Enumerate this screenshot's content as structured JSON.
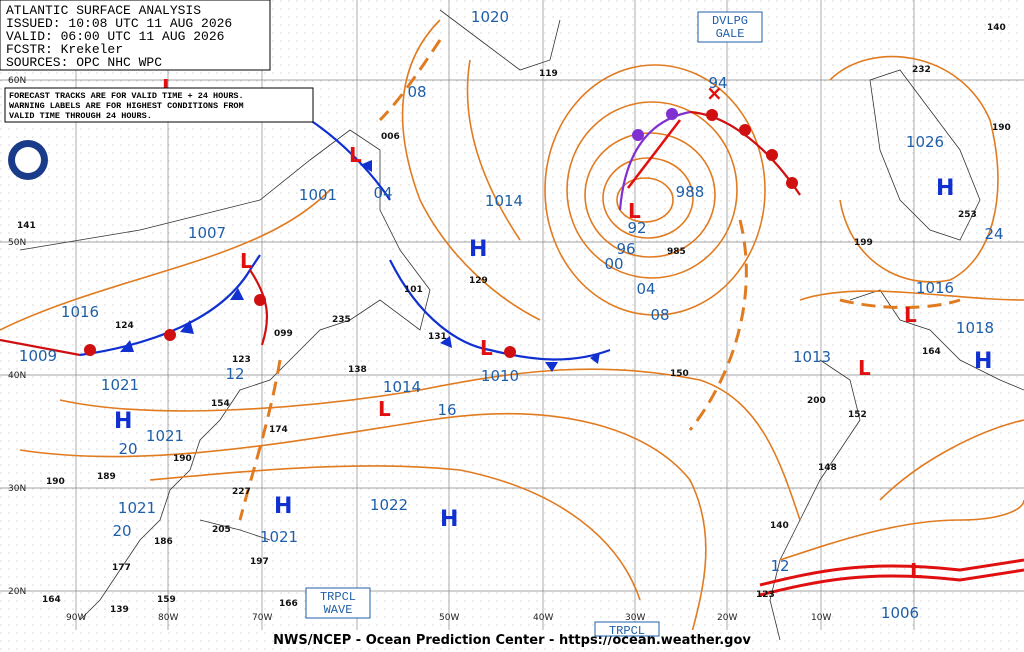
{
  "header": {
    "title": "ATLANTIC SURFACE ANALYSIS",
    "issued": "ISSUED: 10:08 UTC 11 AUG 2026",
    "valid": "VALID:  06:00 UTC 11 AUG 2026",
    "forecaster": "FCSTR:  Krekeler",
    "sources": "SOURCES: OPC NHC WPC"
  },
  "notice": [
    "FORECAST TRACKS ARE FOR VALID TIME + 24 HOURS.",
    "WARNING LABELS ARE FOR HIGHEST CONDITIONS FROM",
    "VALID TIME THROUGH 24 HOURS."
  ],
  "footer": "NWS/NCEP - Ocean Prediction Center - https://ocean.weather.gov",
  "warnings": [
    "DVLPG GALE",
    "TRPCL WAVE",
    "TRPCL"
  ],
  "latitudes": [
    "60N",
    "50N",
    "40N",
    "30N",
    "20N"
  ],
  "longitudes": [
    "90W",
    "80W",
    "70W",
    "50W",
    "40W",
    "30W",
    "20W",
    "10W"
  ],
  "isobar_labels": [
    "1020",
    "08",
    "1001",
    "04",
    "1007",
    "1014",
    "988",
    "94",
    "92",
    "96",
    "00",
    "04",
    "08",
    "1016",
    "1009",
    "1021",
    "1014",
    "1010",
    "16",
    "12",
    "1021",
    "20",
    "1022",
    "1021",
    "20",
    "1021",
    "1026",
    "1016",
    "1018",
    "24",
    "1013",
    "12",
    "1006"
  ],
  "high_centers": [
    "H",
    "H",
    "H",
    "H",
    "H",
    "H"
  ],
  "station_values": [
    "232",
    "190",
    "253",
    "199",
    "164",
    "985",
    "129",
    "101",
    "131",
    "099",
    "235",
    "138",
    "150",
    "200",
    "152",
    "148",
    "140",
    "123",
    "174",
    "227",
    "205",
    "197",
    "166",
    "159",
    "164",
    "139",
    "177",
    "186",
    "189",
    "190",
    "190",
    "124",
    "123",
    "154",
    "141",
    "119",
    "006",
    "140"
  ]
}
